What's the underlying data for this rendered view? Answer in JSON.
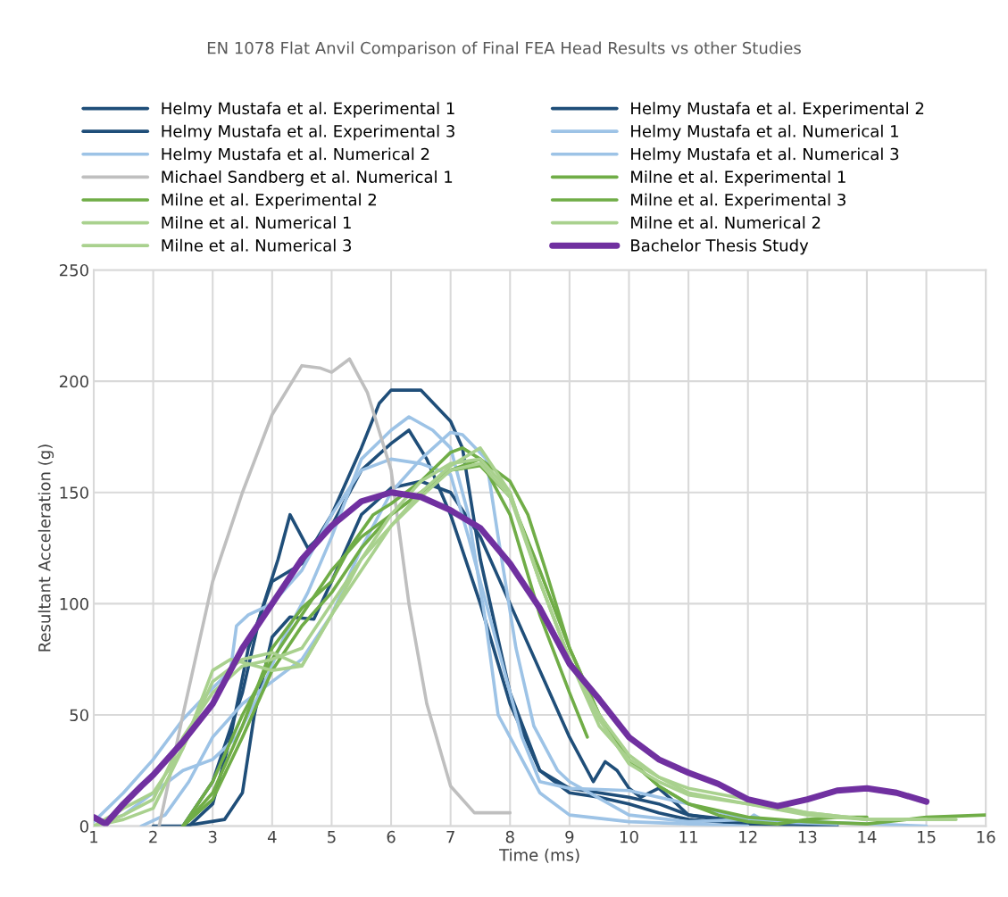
{
  "chart_data": {
    "type": "line",
    "title": "EN 1078 Flat Anvil Comparison of Final FEA Head Results vs other Studies",
    "xlabel": "Time (ms)",
    "ylabel": "Resultant Acceleration (g)",
    "xlim": [
      1,
      16
    ],
    "xticks": [
      1,
      2,
      3,
      4,
      5,
      6,
      7,
      8,
      9,
      10,
      11,
      12,
      13,
      14,
      15,
      16
    ],
    "ylim": [
      0,
      250
    ],
    "yticks": [
      0,
      50,
      100,
      150,
      200,
      250
    ],
    "grid": true,
    "legend": "top",
    "marker": "none",
    "line_style": "solid",
    "series": [
      {
        "name": "Helmy Mustafa et al. Experimental 1",
        "color": "#1f4e79",
        "x": [
          2,
          2.6,
          3,
          3.3,
          3.6,
          4,
          4.5,
          5,
          5.5,
          5.8,
          6,
          6.5,
          7,
          7.2,
          7.5,
          8,
          8.5,
          9,
          9.5,
          10,
          10.5,
          11,
          12,
          13.5
        ],
        "values": [
          0,
          0,
          10,
          40,
          80,
          110,
          118,
          140,
          170,
          190,
          196,
          196,
          182,
          170,
          120,
          60,
          25,
          15,
          13,
          10,
          6,
          3,
          1,
          0
        ]
      },
      {
        "name": "Helmy Mustafa et al. Experimental 2",
        "color": "#1f4e79",
        "x": [
          2.5,
          3,
          3.5,
          3.8,
          4.1,
          4.3,
          4.6,
          5,
          5.5,
          6,
          6.3,
          6.6,
          7,
          7.5,
          8,
          8.5,
          9,
          9.5,
          10,
          10.5,
          11,
          12
        ],
        "values": [
          0,
          20,
          60,
          95,
          120,
          140,
          125,
          135,
          160,
          172,
          178,
          165,
          140,
          100,
          55,
          25,
          17,
          15,
          13,
          10,
          5,
          1
        ]
      },
      {
        "name": "Helmy Mustafa et al. Experimental 3",
        "color": "#1f4e79",
        "x": [
          2.5,
          3.2,
          3.5,
          3.7,
          4,
          4.3,
          4.7,
          5,
          5.5,
          6,
          6.5,
          7,
          7.5,
          8,
          8.5,
          9,
          9.4,
          9.6,
          9.8,
          10,
          10.2,
          10.5,
          10.8,
          11,
          12,
          13.5
        ],
        "values": [
          0,
          3,
          15,
          50,
          85,
          94,
          93,
          110,
          140,
          152,
          155,
          150,
          130,
          100,
          70,
          40,
          20,
          29,
          25,
          17,
          13,
          17,
          10,
          5,
          2,
          0
        ]
      },
      {
        "name": "Helmy Mustafa et al. Numerical 1",
        "color": "#9dc3e6",
        "x": [
          1,
          1.5,
          2,
          2.5,
          3,
          3.4,
          3.8,
          4.2,
          4.6,
          5,
          5.5,
          6,
          6.3,
          6.7,
          7,
          7.3,
          7.6,
          7.8,
          8,
          8.5,
          9,
          10,
          11,
          12
        ],
        "values": [
          0,
          5,
          15,
          25,
          30,
          40,
          60,
          85,
          105,
          130,
          165,
          178,
          184,
          178,
          170,
          140,
          90,
          50,
          40,
          15,
          5,
          2,
          1,
          0
        ]
      },
      {
        "name": "Helmy Mustafa et al. Numerical 2",
        "color": "#9dc3e6",
        "x": [
          1,
          1.5,
          2,
          2.5,
          3,
          3.3,
          3.4,
          3.6,
          4,
          4.5,
          5,
          5.5,
          6,
          6.5,
          7,
          7.3,
          7.6,
          7.9,
          8.2,
          8.5,
          9,
          10,
          11,
          12,
          13,
          15
        ],
        "values": [
          2,
          15,
          30,
          48,
          62,
          70,
          90,
          95,
          100,
          115,
          140,
          160,
          165,
          163,
          158,
          130,
          100,
          70,
          40,
          20,
          17,
          16,
          10,
          3,
          2,
          0
        ]
      },
      {
        "name": "Helmy Mustafa et al. Numerical 3",
        "color": "#9dc3e6",
        "x": [
          1.8,
          2.2,
          2.6,
          3,
          3.5,
          4,
          4.5,
          5,
          5.5,
          6,
          6.5,
          7,
          7.2,
          7.6,
          7.8,
          8.1,
          8.4,
          8.8,
          9,
          10,
          11,
          12,
          12.1,
          12.3,
          13.5
        ],
        "values": [
          0,
          5,
          20,
          40,
          55,
          65,
          75,
          95,
          125,
          150,
          165,
          177,
          176,
          165,
          130,
          80,
          45,
          25,
          20,
          5,
          2,
          3,
          5,
          2,
          1
        ]
      },
      {
        "name": "Michael Sandberg et al. Numerical 1",
        "color": "#bfbfbf",
        "x": [
          2.1,
          2.5,
          3,
          3.5,
          4,
          4.5,
          4.8,
          5,
          5.3,
          5.6,
          6,
          6.3,
          6.6,
          7,
          7.4,
          7.6,
          8
        ],
        "values": [
          0,
          50,
          110,
          150,
          185,
          207,
          206,
          204,
          210,
          195,
          160,
          100,
          55,
          18,
          6,
          6,
          6
        ]
      },
      {
        "name": "Milne et al. Experimental 1",
        "color": "#70ad47",
        "x": [
          2.5,
          3,
          3.5,
          4,
          4.5,
          5,
          5.3,
          5.7,
          6,
          6.5,
          7,
          7.2,
          7.5,
          8,
          8.5,
          9,
          9.3
        ],
        "values": [
          0,
          15,
          45,
          80,
          98,
          110,
          125,
          140,
          145,
          155,
          168,
          170,
          165,
          140,
          95,
          60,
          40
        ]
      },
      {
        "name": "Milne et al. Experimental 2",
        "color": "#70ad47",
        "x": [
          2.5,
          3,
          3.5,
          4,
          4.5,
          5,
          5.5,
          6,
          6.5,
          7,
          7.5,
          8,
          8.3,
          8.6,
          9,
          9.5,
          10,
          10.5,
          11,
          12,
          13,
          14,
          15,
          16
        ],
        "values": [
          0,
          20,
          50,
          75,
          95,
          115,
          130,
          140,
          150,
          160,
          165,
          155,
          140,
          115,
          80,
          50,
          30,
          18,
          10,
          4,
          2,
          1,
          4,
          5
        ]
      },
      {
        "name": "Milne et al. Experimental 3",
        "color": "#70ad47",
        "x": [
          2.5,
          3,
          3.5,
          4,
          4.5,
          5,
          5.5,
          6,
          6.5,
          7,
          7.5,
          8,
          8.5,
          9,
          9.5,
          10,
          10.5,
          11,
          11.5,
          12,
          12.5,
          13,
          13.5,
          14
        ],
        "values": [
          0,
          12,
          40,
          70,
          90,
          105,
          125,
          140,
          150,
          160,
          162,
          148,
          115,
          80,
          50,
          30,
          18,
          10,
          5,
          2,
          1,
          3,
          4,
          4
        ]
      },
      {
        "name": "Milne et al. Numerical 1",
        "color": "#a9d18e",
        "x": [
          1,
          1.5,
          2,
          2.5,
          3,
          3.3,
          3.6,
          4,
          4.5,
          5,
          5.5,
          6,
          6.5,
          7,
          7.5,
          8,
          8.5,
          9,
          9.5,
          10,
          10.5,
          11,
          11.5,
          12,
          13,
          14,
          15.5
        ],
        "values": [
          0,
          3,
          8,
          35,
          70,
          75,
          73,
          70,
          72,
          95,
          120,
          140,
          155,
          163,
          165,
          150,
          110,
          75,
          48,
          28,
          20,
          14,
          12,
          10,
          6,
          3,
          3
        ]
      },
      {
        "name": "Milne et al. Numerical 2",
        "color": "#a9d18e",
        "x": [
          1,
          1.5,
          2,
          2.5,
          3,
          3.5,
          4,
          4.5,
          5,
          5.5,
          6,
          6.5,
          7,
          7.5,
          8,
          8.5,
          9,
          9.5,
          10,
          10.5,
          11,
          12,
          13,
          14,
          15
        ],
        "values": [
          0,
          8,
          15,
          35,
          65,
          75,
          78,
          72,
          95,
          115,
          135,
          150,
          162,
          170,
          150,
          110,
          75,
          45,
          30,
          22,
          17,
          12,
          6,
          3,
          3
        ]
      },
      {
        "name": "Milne et al. Numerical 3",
        "color": "#a9d18e",
        "x": [
          1,
          1.5,
          2,
          2.5,
          3,
          3.5,
          4,
          4.5,
          5,
          5.5,
          6,
          6.5,
          7,
          7.5,
          8,
          8.5,
          9,
          9.5,
          10,
          10.5,
          11,
          12,
          13,
          14
        ],
        "values": [
          0,
          5,
          12,
          40,
          60,
          72,
          75,
          80,
          100,
          120,
          135,
          148,
          160,
          163,
          148,
          110,
          75,
          50,
          32,
          22,
          15,
          10,
          5,
          3
        ]
      },
      {
        "name": "Bachelor Thesis Study",
        "color": "#7030a0",
        "x": [
          1,
          1.2,
          1.5,
          1.8,
          2,
          2.5,
          3,
          3.5,
          4,
          4.5,
          5,
          5.5,
          6,
          6.5,
          7,
          7.5,
          8,
          8.5,
          9,
          9.5,
          10,
          10.5,
          11,
          11.5,
          12,
          12.5,
          13,
          13.5,
          14,
          14.5,
          15
        ],
        "values": [
          4,
          1,
          10,
          18,
          23,
          38,
          55,
          80,
          100,
          120,
          135,
          146,
          150,
          148,
          142,
          134,
          118,
          98,
          73,
          57,
          40,
          30,
          24,
          19,
          12,
          9,
          12,
          16,
          17,
          15,
          11
        ]
      }
    ]
  }
}
